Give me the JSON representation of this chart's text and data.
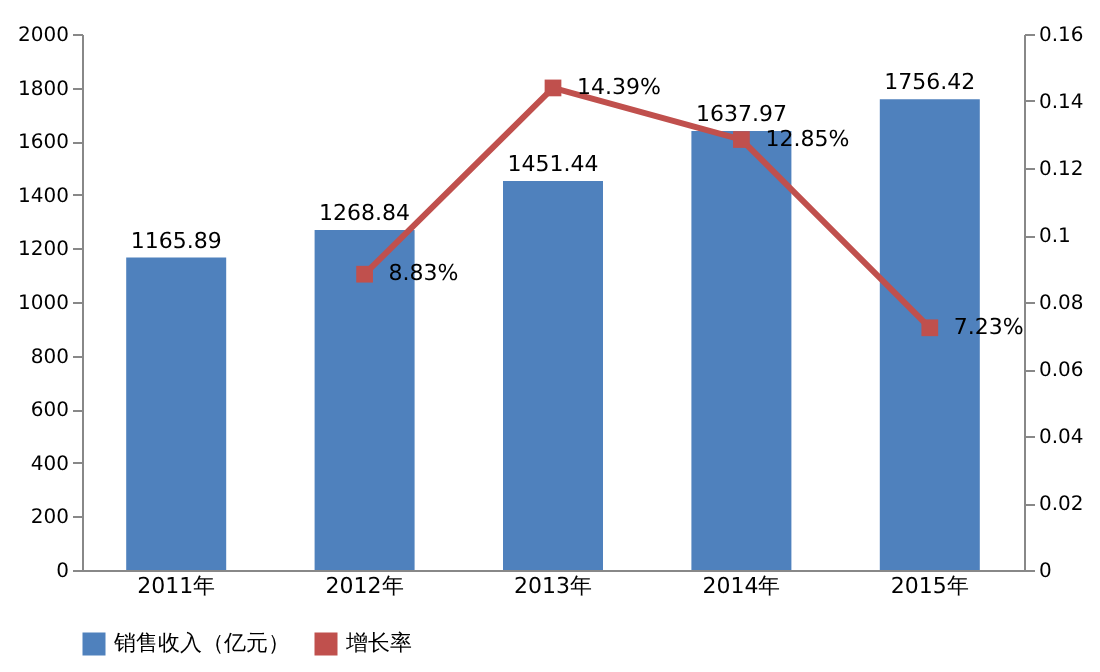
{
  "chart_data": {
    "type": "bar",
    "categories": [
      "2011年",
      "2012年",
      "2013年",
      "2014年",
      "2015年"
    ],
    "series": [
      {
        "name": "销售收入（亿元）",
        "color": "#4f81bd",
        "values": [
          1165.89,
          1268.84,
          1451.44,
          1637.97,
          1756.42
        ],
        "value_labels": [
          "1165.89",
          "1268.84",
          "1451.44",
          "1637.97",
          "1756.42"
        ]
      },
      {
        "name": "增长率",
        "type": "line",
        "axis": "y2",
        "color": "#c0504d",
        "marker": "square",
        "values": [
          null,
          0.0883,
          0.1439,
          0.1285,
          0.0723
        ],
        "value_labels": [
          null,
          "8.83%",
          "14.39%",
          "12.85%",
          "7.23%"
        ]
      }
    ],
    "ylim": [
      0,
      2000
    ],
    "yticks": [
      0,
      200,
      400,
      600,
      800,
      1000,
      1200,
      1400,
      1600,
      1800,
      2000
    ],
    "y2lim": [
      0,
      0.16
    ],
    "y2ticks": [
      0,
      0.02,
      0.04,
      0.06,
      0.08,
      0.1,
      0.12,
      0.14,
      0.16
    ],
    "grid": false,
    "legend": "bottom"
  }
}
